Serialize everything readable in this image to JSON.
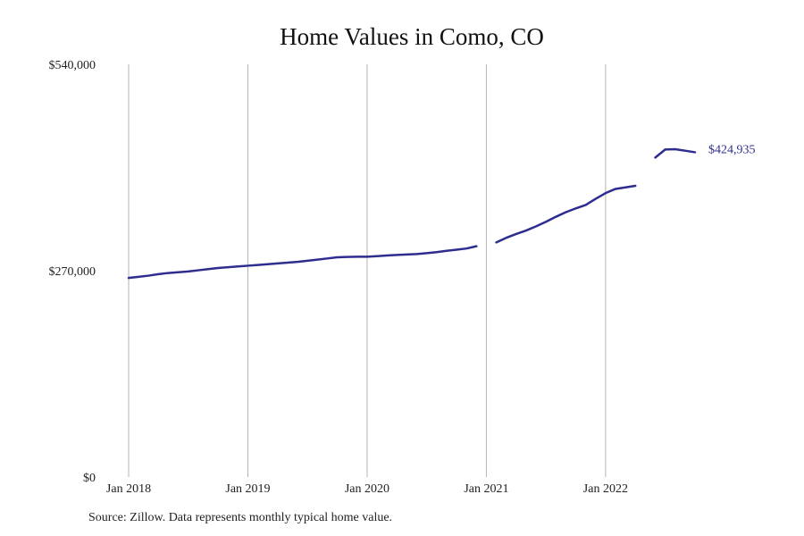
{
  "chart_data": {
    "type": "line",
    "title": "Home Values in Como, CO",
    "xlabel": "",
    "ylabel": "",
    "ylim": [
      0,
      540000
    ],
    "xlim": [
      "2018-01",
      "2022-10"
    ],
    "y_ticks": [
      {
        "value": 0,
        "label": "$0"
      },
      {
        "value": 270000,
        "label": "$270,000"
      },
      {
        "value": 540000,
        "label": "$540,000"
      }
    ],
    "x_ticks": [
      {
        "value": "2018-01",
        "label": "Jan 2018"
      },
      {
        "value": "2019-01",
        "label": "Jan 2019"
      },
      {
        "value": "2020-01",
        "label": "Jan 2020"
      },
      {
        "value": "2021-01",
        "label": "Jan 2021"
      },
      {
        "value": "2022-01",
        "label": "Jan 2022"
      }
    ],
    "grid": "vertical lines at x ticks",
    "line_color": "#2e2d8f",
    "series": [
      {
        "x": [
          "2018-01",
          "2018-02",
          "2018-03",
          "2018-04",
          "2018-05",
          "2018-06",
          "2018-07",
          "2018-08",
          "2018-09",
          "2018-10",
          "2018-11",
          "2018-12",
          "2019-01",
          "2019-02",
          "2019-03",
          "2019-04",
          "2019-05",
          "2019-06",
          "2019-07",
          "2019-08",
          "2019-09",
          "2019-10",
          "2019-11",
          "2019-12",
          "2020-01",
          "2020-02",
          "2020-03",
          "2020-04",
          "2020-05",
          "2020-06",
          "2020-07",
          "2020-08",
          "2020-09",
          "2020-10",
          "2020-11",
          "2020-12",
          null,
          "2021-02",
          "2021-03",
          "2021-04",
          "2021-05",
          "2021-06",
          "2021-07",
          "2021-08",
          "2021-09",
          "2021-10",
          "2021-11",
          "2021-12",
          "2022-01",
          "2022-02",
          "2022-03",
          "2022-04",
          null,
          "2022-06",
          "2022-07",
          "2022-08",
          "2022-09",
          "2022-10"
        ],
        "values": [
          260500,
          262000,
          263500,
          265500,
          267000,
          268000,
          269000,
          270500,
          272000,
          273500,
          274500,
          275500,
          276500,
          277500,
          278500,
          279500,
          280500,
          281500,
          283000,
          284500,
          286000,
          287500,
          288000,
          288300,
          288300,
          289000,
          289800,
          290600,
          291200,
          291800,
          293000,
          294300,
          296000,
          297500,
          299000,
          302000,
          null,
          307000,
          313000,
          318000,
          322500,
          328000,
          334000,
          340500,
          346500,
          351500,
          356000,
          364000,
          371500,
          377000,
          379000,
          381000,
          null,
          418000,
          428500,
          429000,
          427000,
          424935
        ]
      }
    ],
    "annotations": [
      {
        "x": "2022-10",
        "value": 424935,
        "text": "$424,935"
      }
    ],
    "source": "Source: Zillow. Data represents monthly typical home value."
  }
}
